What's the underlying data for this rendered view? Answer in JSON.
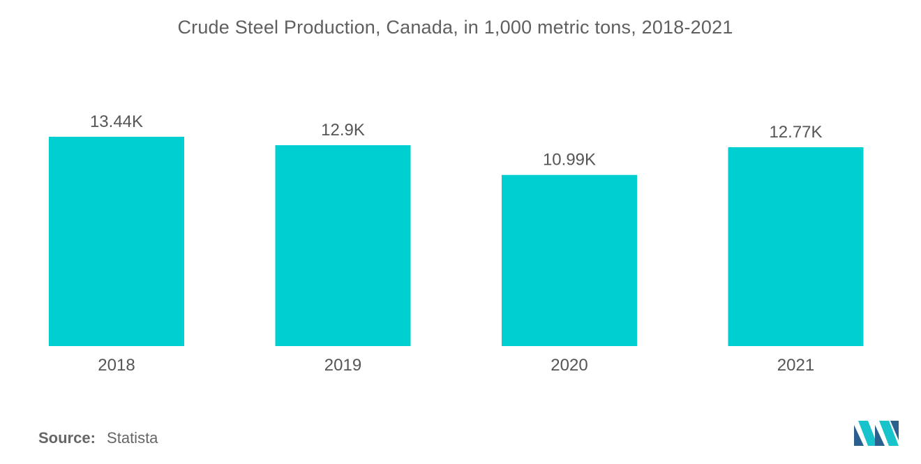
{
  "title": "Crude Steel Production, Canada, in 1,000 metric tons, 2018-2021",
  "source": {
    "label": "Source:",
    "value": "Statista"
  },
  "colors": {
    "bar": "#00cfd1",
    "text": "#555555",
    "logo_dark": "#2b5f8e",
    "logo_light": "#19c3cc"
  },
  "chart_data": {
    "type": "bar",
    "title": "Crude Steel Production, Canada, in 1,000 metric tons, 2018-2021",
    "categories": [
      "2018",
      "2019",
      "2020",
      "2021"
    ],
    "values": [
      13440,
      12900,
      10990,
      12770
    ],
    "value_labels": [
      "13.44K",
      "12.9K",
      "10.99K",
      "12.77K"
    ],
    "xlabel": "",
    "ylabel": "",
    "ylim": [
      0,
      13440
    ],
    "grid": false,
    "legend": "none"
  }
}
